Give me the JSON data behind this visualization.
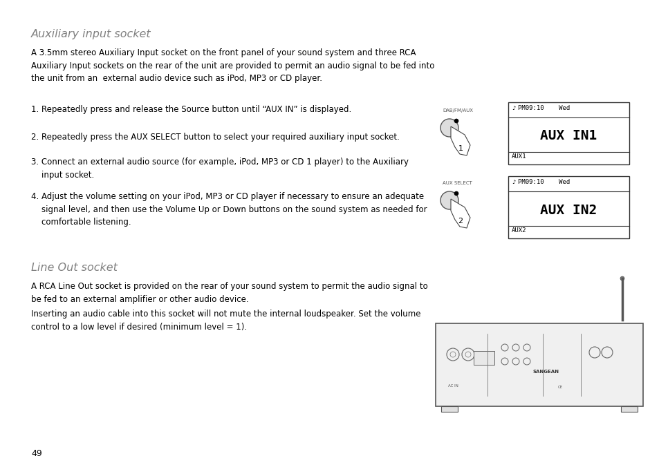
{
  "background_color": "#ffffff",
  "page_number": "49",
  "title1": "Auxiliary input socket",
  "title2": "Line Out socket",
  "body_text1": "A 3.5mm stereo Auxiliary Input socket on the front panel of your sound system and three RCA\nAuxiliary Input sockets on the rear of the unit are provided to permit an audio signal to be fed into\nthe unit from an  external audio device such as iPod, MP3 or CD player.",
  "steps": [
    "1. Repeatedly press and release the Source button until “AUX IN” is displayed.",
    "2. Repeatedly press the AUX SELECT button to select your required auxiliary input socket.",
    "3. Connect an external audio source (for example, iPod, MP3 or CD 1 player) to the Auxiliary\n    input socket.",
    "4. Adjust the volume setting on your iPod, MP3 or CD player if necessary to ensure an adequate\n    signal level, and then use the Volume Up or Down buttons on the sound system as needed for\n    comfortable listening."
  ],
  "body_text2": "A RCA Line Out socket is provided on the rear of your sound system to permit the audio signal to\nbe fed to an external amplifier or other audio device.",
  "body_text3": "Inserting an audio cable into this socket will not mute the internal loudspeaker. Set the volume\ncontrol to a low level if desired (minimum level = 1).",
  "title_color": "#808080",
  "text_color": "#000000",
  "display1_header": "PM09:10    Wed",
  "display1_main": "AUX IN1",
  "display1_footer": "AUX1",
  "display2_header": "PM09:10    Wed",
  "display2_main": "AUX IN2",
  "display2_footer": "AUX2",
  "label1": "DAB/FM/AUX",
  "label2": "AUX SELECT"
}
